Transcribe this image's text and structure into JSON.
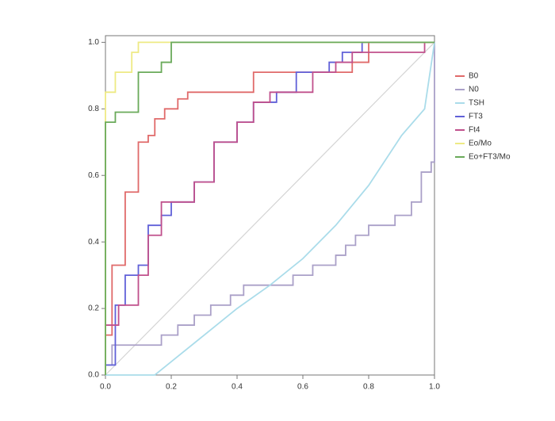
{
  "chart_data": {
    "type": "line",
    "xlim": [
      0,
      1
    ],
    "ylim": [
      0,
      1.02
    ],
    "xticks": [
      {
        "value": 0,
        "label": "0.0"
      },
      {
        "value": 0.2,
        "label": "0.2"
      },
      {
        "value": 0.4,
        "label": "0.4"
      },
      {
        "value": 0.6,
        "label": "0.6"
      },
      {
        "value": 0.8,
        "label": "0.8"
      },
      {
        "value": 1,
        "label": "1.0"
      }
    ],
    "yticks": [
      {
        "value": 0,
        "label": "0.0"
      },
      {
        "value": 0.2,
        "label": "0.2"
      },
      {
        "value": 0.4,
        "label": "0.4"
      },
      {
        "value": 0.6,
        "label": "0.6"
      },
      {
        "value": 0.8,
        "label": "0.8"
      },
      {
        "value": 1,
        "label": "1.0"
      }
    ],
    "legend": "right",
    "series": [
      {
        "name": "B0",
        "color": "#e06a6a",
        "x": [
          0,
          0.02,
          0.02,
          0.06,
          0.06,
          0.1,
          0.1,
          0.13,
          0.13,
          0.15,
          0.15,
          0.18,
          0.18,
          0.22,
          0.22,
          0.25,
          0.25,
          0.45,
          0.45,
          0.75,
          0.75,
          0.8,
          0.8,
          1
        ],
        "values": [
          0.12,
          0.12,
          0.33,
          0.33,
          0.55,
          0.55,
          0.7,
          0.7,
          0.72,
          0.72,
          0.77,
          0.77,
          0.8,
          0.8,
          0.83,
          0.83,
          0.85,
          0.85,
          0.91,
          0.91,
          0.94,
          0.94,
          1,
          1
        ]
      },
      {
        "name": "N0",
        "color": "#aaa0c8",
        "x": [
          0,
          0.02,
          0.02,
          0.17,
          0.17,
          0.22,
          0.22,
          0.27,
          0.27,
          0.32,
          0.32,
          0.38,
          0.38,
          0.42,
          0.42,
          0.57,
          0.57,
          0.63,
          0.63,
          0.7,
          0.7,
          0.73,
          0.73,
          0.76,
          0.76,
          0.8,
          0.8,
          0.88,
          0.88,
          0.93,
          0.93,
          0.96,
          0.96,
          0.99,
          0.99,
          1,
          1
        ],
        "values": [
          0.03,
          0.03,
          0.09,
          0.09,
          0.12,
          0.12,
          0.15,
          0.15,
          0.18,
          0.18,
          0.21,
          0.21,
          0.24,
          0.24,
          0.27,
          0.27,
          0.3,
          0.3,
          0.33,
          0.33,
          0.36,
          0.36,
          0.39,
          0.39,
          0.42,
          0.42,
          0.45,
          0.45,
          0.48,
          0.48,
          0.52,
          0.52,
          0.61,
          0.61,
          0.64,
          0.64,
          1
        ]
      },
      {
        "name": "TSH",
        "color": "#aadcea",
        "x": [
          0,
          0.15,
          0.2,
          0.3,
          0.4,
          0.5,
          0.6,
          0.7,
          0.8,
          0.9,
          0.97,
          1
        ],
        "values": [
          0,
          0,
          0.04,
          0.12,
          0.2,
          0.27,
          0.35,
          0.45,
          0.57,
          0.72,
          0.8,
          1
        ]
      },
      {
        "name": "FT3",
        "color": "#6060d8",
        "x": [
          0,
          0.03,
          0.03,
          0.06,
          0.06,
          0.1,
          0.1,
          0.13,
          0.13,
          0.17,
          0.17,
          0.2,
          0.2,
          0.27,
          0.27,
          0.33,
          0.33,
          0.4,
          0.4,
          0.45,
          0.45,
          0.52,
          0.52,
          0.58,
          0.58,
          0.68,
          0.68,
          0.72,
          0.72,
          0.78,
          0.78,
          1
        ],
        "values": [
          0.03,
          0.03,
          0.21,
          0.21,
          0.3,
          0.3,
          0.33,
          0.33,
          0.45,
          0.45,
          0.48,
          0.48,
          0.52,
          0.52,
          0.58,
          0.58,
          0.7,
          0.7,
          0.76,
          0.76,
          0.82,
          0.82,
          0.85,
          0.85,
          0.91,
          0.91,
          0.94,
          0.94,
          0.97,
          0.97,
          1,
          1
        ]
      },
      {
        "name": "Ft4",
        "color": "#c0508c",
        "x": [
          0,
          0.04,
          0.04,
          0.1,
          0.1,
          0.13,
          0.13,
          0.17,
          0.17,
          0.27,
          0.27,
          0.33,
          0.33,
          0.4,
          0.4,
          0.45,
          0.45,
          0.5,
          0.5,
          0.63,
          0.63,
          0.7,
          0.7,
          0.75,
          0.75,
          0.97,
          0.97,
          1
        ],
        "values": [
          0.15,
          0.15,
          0.21,
          0.21,
          0.3,
          0.3,
          0.42,
          0.42,
          0.52,
          0.52,
          0.58,
          0.58,
          0.7,
          0.7,
          0.76,
          0.76,
          0.82,
          0.82,
          0.85,
          0.85,
          0.91,
          0.91,
          0.94,
          0.94,
          0.97,
          0.97,
          1,
          1
        ]
      },
      {
        "name": "Eo/Mo",
        "color": "#eeea84",
        "x": [
          0,
          0,
          0.03,
          0.03,
          0.08,
          0.08,
          0.1,
          0.1,
          1
        ],
        "values": [
          0,
          0.85,
          0.85,
          0.91,
          0.91,
          0.97,
          0.97,
          1,
          1
        ]
      },
      {
        "name": "Eo+FT3/Mo",
        "color": "#6aaa5a",
        "x": [
          0,
          0,
          0.03,
          0.03,
          0.1,
          0.1,
          0.17,
          0.17,
          0.2,
          0.2,
          1
        ],
        "values": [
          0,
          0.76,
          0.76,
          0.79,
          0.79,
          0.91,
          0.91,
          0.94,
          0.94,
          1,
          1
        ]
      }
    ]
  }
}
